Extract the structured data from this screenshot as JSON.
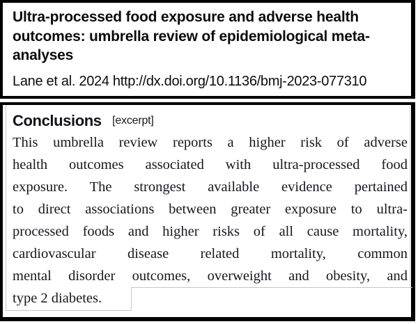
{
  "header": {
    "title": "Ultra-processed food exposure and adverse health outcomes: umbrella review of epidemiological meta-analyses",
    "citation": "Lane et al. 2024 http://dx.doi.org/10.1136/bmj-2023-077310"
  },
  "conclusions": {
    "heading": "Conclusions",
    "excerpt_tag": "[excerpt]",
    "lines": [
      "This umbrella review reports a higher risk of adverse",
      "health outcomes associated with ultra-processed food",
      "exposure. The strongest available evidence pertained",
      "to direct associations between greater exposure to ultra-",
      "processed foods and higher risks of all cause mortality,",
      "cardiovascular disease related mortality, common",
      "mental disorder outcomes, overweight and obesity, and",
      "type 2 diabetes."
    ],
    "full_text": "This umbrella review reports a higher risk of adverse health outcomes associated with ultra-processed food exposure. The strongest available evidence pertained to direct associations between greater exposure to ultra-processed foods and higher risks of all cause mortality, cardiovascular disease related mortality, common mental disorder outcomes, overweight and obesity, and type 2 diabetes."
  },
  "colors": {
    "frame_border": "#000000",
    "title_text": "#0b0b0b",
    "body_text": "#16161e",
    "panel_edge": "#c6c6c6",
    "background": "#ffffff"
  }
}
